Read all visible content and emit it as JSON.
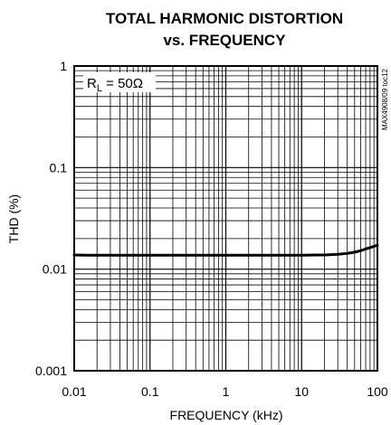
{
  "chart_data": {
    "type": "line",
    "title": [
      "TOTAL HARMONIC DISTORTION",
      "vs. FREQUENCY"
    ],
    "xlabel": "FREQUENCY (kHz)",
    "ylabel": "THD (%)",
    "xscale": "log",
    "yscale": "log",
    "xlim": [
      0.01,
      100
    ],
    "ylim": [
      0.001,
      1
    ],
    "x_ticks": [
      "0.01",
      "0.1",
      "1",
      "10",
      "100"
    ],
    "y_ticks": [
      "0.001",
      "0.01",
      "0.1",
      "1"
    ],
    "grid": true,
    "annotation": {
      "main": "R",
      "sub": "L",
      "rest": " = 50Ω"
    },
    "figure_code": "MAX4908/09 toc12",
    "series": [
      {
        "x": [
          0.01,
          0.015,
          0.02,
          0.03,
          0.05,
          0.07,
          0.1,
          0.15,
          0.2,
          0.3,
          0.5,
          0.7,
          1,
          1.5,
          2,
          3,
          5,
          7,
          10,
          15,
          20,
          30,
          40,
          50,
          60,
          70,
          80,
          100
        ],
        "values": [
          0.0138,
          0.0137,
          0.0137,
          0.0137,
          0.0137,
          0.0137,
          0.0137,
          0.0137,
          0.0137,
          0.0137,
          0.0137,
          0.0137,
          0.0137,
          0.0137,
          0.0137,
          0.0137,
          0.0137,
          0.0137,
          0.0137,
          0.0138,
          0.0138,
          0.014,
          0.0143,
          0.0147,
          0.0152,
          0.0158,
          0.0163,
          0.0172
        ]
      }
    ]
  }
}
